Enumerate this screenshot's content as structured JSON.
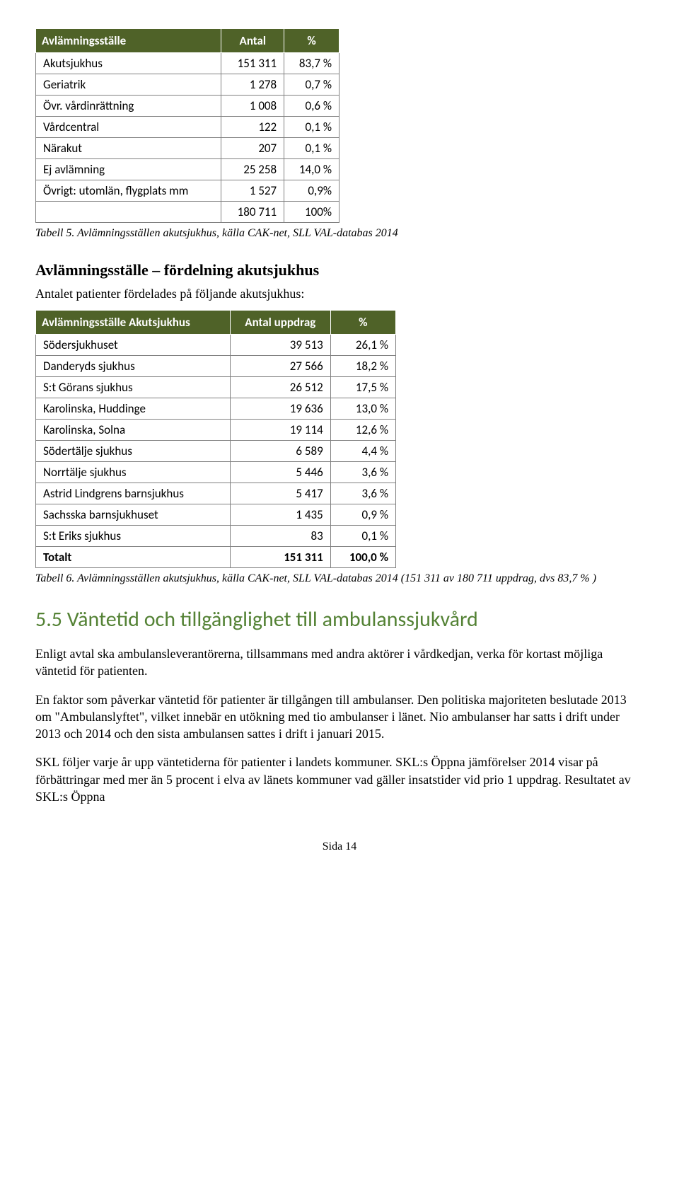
{
  "table1": {
    "headers": [
      "Avlämningsställe",
      "Antal",
      "%"
    ],
    "rows": [
      {
        "label": "Akutsjukhus",
        "antal": "151 311",
        "pct": "83,7 %"
      },
      {
        "label": "Geriatrik",
        "antal": "1 278",
        "pct": "0,7 %"
      },
      {
        "label": "Övr. vårdinrättning",
        "antal": "1 008",
        "pct": "0,6 %"
      },
      {
        "label": "Vårdcentral",
        "antal": "122",
        "pct": "0,1 %"
      },
      {
        "label": "Närakut",
        "antal": "207",
        "pct": "0,1 %"
      },
      {
        "label": "Ej avlämning",
        "antal": "25 258",
        "pct": "14,0 %"
      },
      {
        "label": "Övrigt: utomlän, flygplats mm",
        "antal": "1 527",
        "pct": "0,9%"
      },
      {
        "label": "",
        "antal": "180 711",
        "pct": "100%"
      }
    ],
    "caption": "Tabell 5. Avlämningsställen akutsjukhus, källa CAK-net, SLL VAL-databas 2014"
  },
  "section1": {
    "heading": "Avlämningsställe – fördelning akutsjukhus",
    "intro": "Antalet patienter fördelades på följande akutsjukhus:"
  },
  "table2": {
    "headers": [
      "Avlämningsställe Akutsjukhus",
      "Antal uppdrag",
      "%"
    ],
    "rows": [
      {
        "label": "Södersjukhuset",
        "antal": "39 513",
        "pct": "26,1 %"
      },
      {
        "label": "Danderyds sjukhus",
        "antal": "27 566",
        "pct": "18,2 %"
      },
      {
        "label": "S:t Görans sjukhus",
        "antal": "26 512",
        "pct": "17,5 %"
      },
      {
        "label": "Karolinska, Huddinge",
        "antal": "19 636",
        "pct": "13,0 %"
      },
      {
        "label": "Karolinska, Solna",
        "antal": "19 114",
        "pct": "12,6 %"
      },
      {
        "label": "Södertälje sjukhus",
        "antal": "6 589",
        "pct": "4,4 %"
      },
      {
        "label": "Norrtälje sjukhus",
        "antal": "5 446",
        "pct": "3,6 %"
      },
      {
        "label": "Astrid Lindgrens barnsjukhus",
        "antal": "5 417",
        "pct": "3,6 %"
      },
      {
        "label": "Sachsska barnsjukhuset",
        "antal": "1 435",
        "pct": "0,9 %"
      },
      {
        "label": "S:t Eriks sjukhus",
        "antal": "83",
        "pct": "0,1 %"
      }
    ],
    "total": {
      "label": "Totalt",
      "antal": "151 311",
      "pct": "100,0 %"
    },
    "caption": "Tabell 6. Avlämningsställen akutsjukhus, källa CAK-net, SLL VAL-databas 2014 (151 311 av 180 711 uppdrag, dvs 83,7 % )"
  },
  "section2": {
    "heading": "5.5 Väntetid och tillgänglighet till ambulanssjukvård",
    "p1": "Enligt avtal ska ambulansleverantörerna, tillsammans med andra aktörer i vårdkedjan, verka för kortast möjliga väntetid för patienten.",
    "p2": "En faktor som påverkar väntetid för patienter är tillgången till ambulanser. Den politiska majoriteten beslutade 2013 om \"Ambulanslyftet\", vilket innebär en utökning med tio ambulanser i länet. Nio ambulanser har satts i drift under 2013 och 2014 och den sista ambulansen sattes i drift i januari 2015.",
    "p3": "SKL följer varje år upp väntetiderna för patienter i landets kommuner. SKL:s Öppna jämförelser 2014 visar på förbättringar med mer än 5 procent i elva av länets kommuner vad gäller insatstider vid prio 1 uppdrag. Resultatet av SKL:s Öppna"
  },
  "footer": "Sida 14",
  "colors": {
    "header_bg": "#4f6228",
    "header_fg": "#ffffff",
    "section_color": "#548235"
  }
}
